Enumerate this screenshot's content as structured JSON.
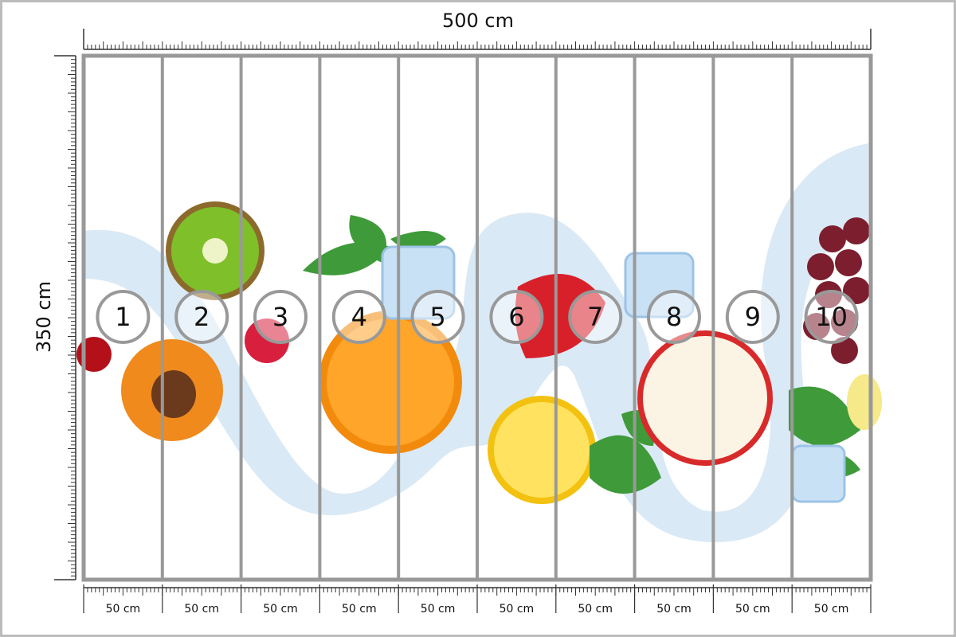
{
  "dimensions": {
    "width": "500 cm",
    "height": "350 cm"
  },
  "panels": [
    {
      "number": "1",
      "width": "50 cm"
    },
    {
      "number": "2",
      "width": "50 cm"
    },
    {
      "number": "3",
      "width": "50 cm"
    },
    {
      "number": "4",
      "width": "50 cm"
    },
    {
      "number": "5",
      "width": "50 cm"
    },
    {
      "number": "6",
      "width": "50 cm"
    },
    {
      "number": "7",
      "width": "50 cm"
    },
    {
      "number": "8",
      "width": "50 cm"
    },
    {
      "number": "9",
      "width": "50 cm"
    },
    {
      "number": "10",
      "width": "50 cm"
    }
  ]
}
